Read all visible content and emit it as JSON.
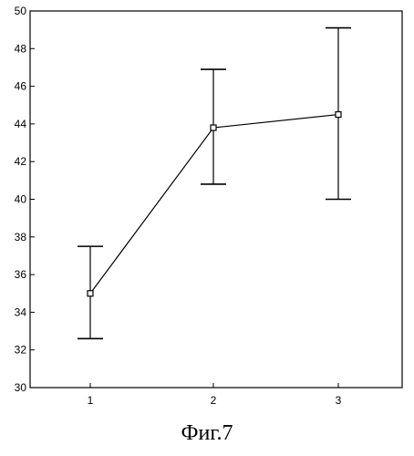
{
  "chart_data": {
    "type": "line",
    "title": "",
    "xlabel": "",
    "ylabel": "",
    "categories": [
      "1",
      "2",
      "3"
    ],
    "values": [
      35.0,
      43.8,
      44.5
    ],
    "error_low": [
      32.6,
      40.8,
      40.0
    ],
    "error_high": [
      37.5,
      46.9,
      49.1
    ],
    "ylim": [
      30,
      50
    ],
    "y_ticks": [
      30,
      32,
      34,
      36,
      38,
      40,
      42,
      44,
      46,
      48,
      50
    ],
    "grid": false,
    "line_color": "#000000",
    "marker": "open-square"
  },
  "caption": "Фиг.7"
}
